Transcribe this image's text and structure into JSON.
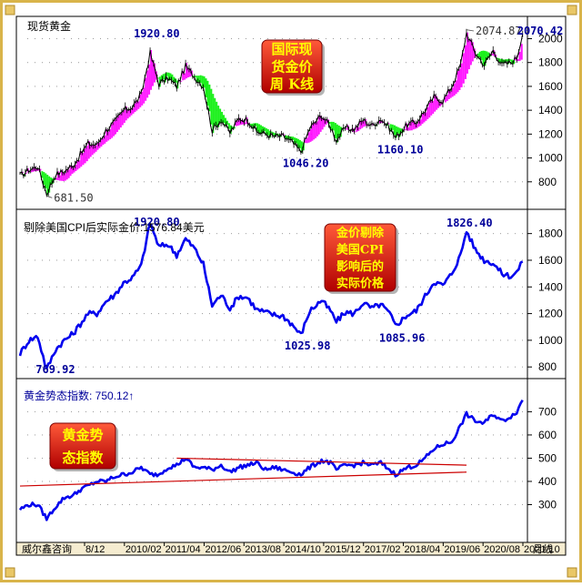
{
  "colors": {
    "border": "#d9b44a",
    "price_line": "#000000",
    "bull_fill": "#ff00ff",
    "bear_fill": "#00ee00",
    "real_line": "#0000ee",
    "trend_line": "#cc0000",
    "annot_text": "#000099",
    "badge_red": "#e00000",
    "badge_text": "#ffff00",
    "axis_text": "#000000"
  },
  "footer": {
    "source": "威尔鑫咨询",
    "period": "月线",
    "ticks": [
      "8/12",
      "2010/02",
      "2011/04",
      "2012/06",
      "2013/08",
      "2014/10",
      "2015/12",
      "2017/02",
      "2018/04",
      "2019/06",
      "2020/08",
      "2021/10"
    ]
  },
  "chart_data": [
    {
      "type": "line",
      "title": "现货黄金",
      "badge": [
        "国际现",
        "货金价",
        "周 K线"
      ],
      "ylim": [
        600,
        2080
      ],
      "y_ticks": [
        800,
        1000,
        1200,
        1400,
        1600,
        1800,
        2000
      ],
      "annotations": [
        {
          "label": "1920.80",
          "x": "2011-09",
          "y": 1920.8
        },
        {
          "label": "681.50",
          "x": "2008-10",
          "y": 681.5
        },
        {
          "label": "1046.20",
          "x": "2015-12",
          "y": 1046.2
        },
        {
          "label": "1160.10",
          "x": "2018-08",
          "y": 1160.1
        },
        {
          "label": "2074.87",
          "x": "2020-08",
          "y": 2074.87
        },
        {
          "label": "2070.42",
          "x": "2022-03",
          "y": 2070.42
        }
      ],
      "series": [
        {
          "x": [
            "2008-01",
            "2008-04",
            "2008-07",
            "2008-10",
            "2009-01",
            "2009-04",
            "2009-07",
            "2009-10",
            "2009-12",
            "2010-03",
            "2010-06",
            "2010-09",
            "2010-12",
            "2011-03",
            "2011-06",
            "2011-09",
            "2011-12",
            "2012-03",
            "2012-06",
            "2012-09",
            "2012-12",
            "2013-03",
            "2013-06",
            "2013-09",
            "2013-12",
            "2014-03",
            "2014-06",
            "2014-09",
            "2014-12",
            "2015-03",
            "2015-06",
            "2015-09",
            "2015-12",
            "2016-03",
            "2016-07",
            "2016-10",
            "2016-12",
            "2017-03",
            "2017-06",
            "2017-09",
            "2017-12",
            "2018-03",
            "2018-06",
            "2018-08",
            "2018-12",
            "2019-03",
            "2019-06",
            "2019-09",
            "2019-12",
            "2020-03",
            "2020-06",
            "2020-08",
            "2020-11",
            "2021-02",
            "2021-05",
            "2021-08",
            "2021-11",
            "2022-01",
            "2022-03"
          ],
          "values": [
            850,
            900,
            930,
            700,
            860,
            890,
            940,
            1050,
            1120,
            1110,
            1230,
            1300,
            1400,
            1430,
            1530,
            1880,
            1620,
            1670,
            1600,
            1770,
            1680,
            1600,
            1230,
            1320,
            1210,
            1330,
            1320,
            1220,
            1200,
            1180,
            1180,
            1130,
            1050,
            1250,
            1360,
            1260,
            1150,
            1250,
            1240,
            1320,
            1270,
            1330,
            1250,
            1170,
            1280,
            1300,
            1400,
            1510,
            1480,
            1600,
            1780,
            2050,
            1880,
            1780,
            1900,
            1780,
            1800,
            1840,
            2040
          ]
        }
      ]
    },
    {
      "type": "line",
      "title": "剔除美国CPI后实际金价:1576.84美元",
      "badge": [
        "金价剔除",
        "美国CPI",
        "影响后的",
        "实际价格"
      ],
      "ylim": [
        740,
        1900
      ],
      "y_ticks": [
        800,
        1000,
        1200,
        1400,
        1600,
        1800
      ],
      "annotations": [
        {
          "label": "1920.80",
          "x": "2011-09",
          "y": 1920.8
        },
        {
          "label": "769.92",
          "x": "2008-10",
          "y": 769.92
        },
        {
          "label": "1025.98",
          "x": "2015-12",
          "y": 1025.98
        },
        {
          "label": "1085.96",
          "x": "2018-08",
          "y": 1085.96
        },
        {
          "label": "1826.40",
          "x": "2020-08",
          "y": 1826.4
        }
      ],
      "series": [
        {
          "x": [
            "2008-01",
            "2008-04",
            "2008-07",
            "2008-10",
            "2009-01",
            "2009-04",
            "2009-07",
            "2009-10",
            "2009-12",
            "2010-03",
            "2010-06",
            "2010-09",
            "2010-12",
            "2011-03",
            "2011-06",
            "2011-09",
            "2011-12",
            "2012-03",
            "2012-06",
            "2012-09",
            "2012-12",
            "2013-03",
            "2013-06",
            "2013-09",
            "2013-12",
            "2014-03",
            "2014-06",
            "2014-09",
            "2014-12",
            "2015-03",
            "2015-06",
            "2015-09",
            "2015-12",
            "2016-03",
            "2016-07",
            "2016-10",
            "2016-12",
            "2017-03",
            "2017-06",
            "2017-09",
            "2017-12",
            "2018-03",
            "2018-06",
            "2018-08",
            "2018-12",
            "2019-03",
            "2019-06",
            "2019-09",
            "2019-12",
            "2020-03",
            "2020-06",
            "2020-08",
            "2020-11",
            "2021-02",
            "2021-05",
            "2021-08",
            "2021-11",
            "2022-01",
            "2022-03"
          ],
          "values": [
            900,
            1000,
            1030,
            780,
            930,
            1000,
            1050,
            1140,
            1200,
            1200,
            1290,
            1340,
            1430,
            1470,
            1560,
            1880,
            1700,
            1720,
            1640,
            1760,
            1690,
            1570,
            1260,
            1340,
            1240,
            1330,
            1320,
            1230,
            1210,
            1190,
            1180,
            1120,
            1040,
            1220,
            1300,
            1220,
            1140,
            1210,
            1200,
            1280,
            1240,
            1270,
            1200,
            1110,
            1190,
            1220,
            1330,
            1440,
            1410,
            1500,
            1640,
            1820,
            1680,
            1600,
            1580,
            1500,
            1480,
            1510,
            1590
          ]
        }
      ]
    },
    {
      "type": "line",
      "title": "黄金势态指数: 750.12↑",
      "badge": [
        "黄金势",
        "态指数"
      ],
      "ylim": [
        200,
        780
      ],
      "y_ticks": [
        300,
        400,
        500,
        600,
        700
      ],
      "series": [
        {
          "x": [
            "2008-01",
            "2008-04",
            "2008-07",
            "2008-10",
            "2009-01",
            "2009-04",
            "2009-07",
            "2009-10",
            "2009-12",
            "2010-03",
            "2010-06",
            "2010-09",
            "2010-12",
            "2011-03",
            "2011-06",
            "2011-09",
            "2011-12",
            "2012-03",
            "2012-06",
            "2012-09",
            "2012-12",
            "2013-03",
            "2013-06",
            "2013-09",
            "2013-12",
            "2014-03",
            "2014-06",
            "2014-09",
            "2014-12",
            "2015-03",
            "2015-06",
            "2015-09",
            "2015-12",
            "2016-03",
            "2016-07",
            "2016-10",
            "2016-12",
            "2017-03",
            "2017-06",
            "2017-09",
            "2017-12",
            "2018-03",
            "2018-06",
            "2018-08",
            "2018-12",
            "2019-03",
            "2019-06",
            "2019-09",
            "2019-12",
            "2020-03",
            "2020-06",
            "2020-08",
            "2020-11",
            "2021-02",
            "2021-05",
            "2021-08",
            "2021-11",
            "2022-01",
            "2022-03"
          ],
          "values": [
            280,
            300,
            300,
            240,
            290,
            330,
            340,
            370,
            380,
            400,
            400,
            420,
            430,
            440,
            460,
            430,
            430,
            460,
            470,
            500,
            460,
            460,
            450,
            470,
            440,
            460,
            470,
            480,
            450,
            460,
            450,
            440,
            430,
            460,
            490,
            480,
            450,
            470,
            470,
            480,
            470,
            480,
            450,
            430,
            460,
            470,
            500,
            540,
            560,
            570,
            640,
            690,
            660,
            650,
            690,
            660,
            680,
            700,
            750
          ]
        }
      ],
      "trend_lines": [
        {
          "from": [
            "2008-01",
            380
          ],
          "to": [
            "2020-08",
            440
          ]
        },
        {
          "from": [
            "2012-06",
            500
          ],
          "to": [
            "2020-08",
            470
          ]
        }
      ]
    }
  ]
}
